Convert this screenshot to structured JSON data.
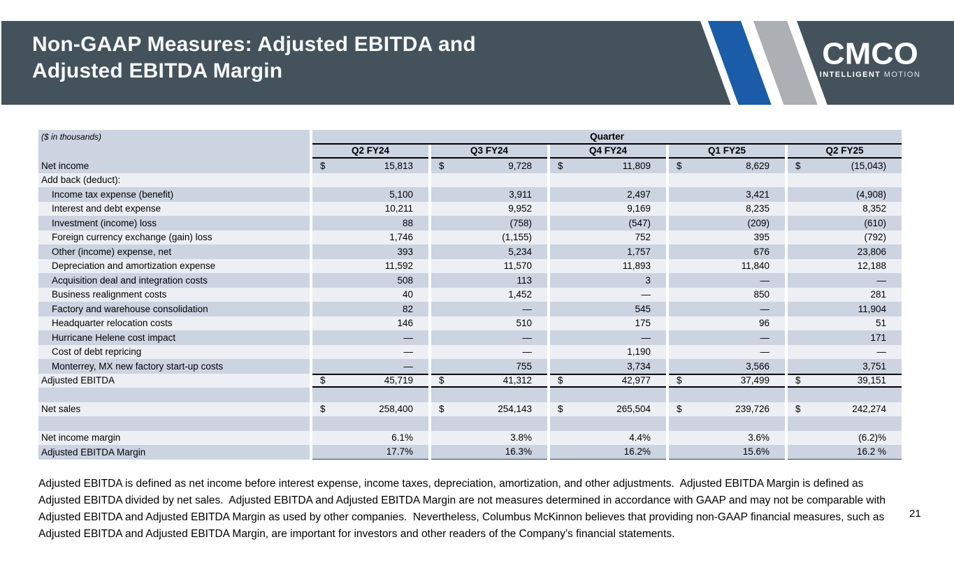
{
  "slide": {
    "title_line1": "Non-GAAP Measures: Adjusted EBITDA and",
    "title_line2": "Adjusted EBITDA Margin",
    "page_number": "21",
    "footnote": "Adjusted EBITDA is defined as net income before interest expense, income taxes, depreciation, amortization, and other adjustments.  Adjusted EBITDA Margin is defined as Adjusted EBITDA divided by net sales.  Adjusted EBITDA and Adjusted EBITDA Margin are not measures determined in accordance with GAAP and may not be comparable with Adjusted EBITDA and Adjusted EBITDA Margin as used by other companies.  Nevertheless, Columbus McKinnon believes that providing non-GAAP financial measures, such as Adjusted EBITDA and Adjusted EBITDA Margin, are important for investors and other readers of the Company’s financial statements."
  },
  "logo": {
    "wordmark": "CMCO",
    "tagline_bold": "INTELLIGENT",
    "tagline_light": "MOTION"
  },
  "colors": {
    "band": "#44525C",
    "stripe_blue": "#1A5CA8",
    "stripe_gray": "#ACB0B4",
    "row_dark": "#CCD3E1",
    "row_light": "#EDEFF4"
  },
  "table": {
    "units_label": "($ in thousands)",
    "group_header": "Quarter",
    "columns": [
      "Q2 FY24",
      "Q3 FY24",
      "Q4 FY24",
      "Q1 FY25",
      "Q2 FY25"
    ],
    "rows": [
      {
        "label": "Net income",
        "indent": false,
        "dollar": true,
        "spacer": false,
        "total": false,
        "last": false,
        "values": [
          "15,813",
          "9,728",
          "11,809",
          "8,629",
          "(15,043)"
        ]
      },
      {
        "label": "Add back (deduct):",
        "indent": false,
        "dollar": false,
        "spacer": false,
        "total": false,
        "last": false,
        "values": [
          "",
          "",
          "",
          "",
          ""
        ]
      },
      {
        "label": "Income tax expense (benefit)",
        "indent": true,
        "dollar": false,
        "spacer": false,
        "total": false,
        "last": false,
        "values": [
          "5,100",
          "3,911",
          "2,497",
          "3,421",
          "(4,908)"
        ]
      },
      {
        "label": "Interest and debt expense",
        "indent": true,
        "dollar": false,
        "spacer": false,
        "total": false,
        "last": false,
        "values": [
          "10,211",
          "9,952",
          "9,169",
          "8,235",
          "8,352"
        ]
      },
      {
        "label": "Investment (income) loss",
        "indent": true,
        "dollar": false,
        "spacer": false,
        "total": false,
        "last": false,
        "values": [
          "88",
          "(758)",
          "(547)",
          "(209)",
          "(610)"
        ]
      },
      {
        "label": "Foreign currency exchange (gain) loss",
        "indent": true,
        "dollar": false,
        "spacer": false,
        "total": false,
        "last": false,
        "values": [
          "1,746",
          "(1,155)",
          "752",
          "395",
          "(792)"
        ]
      },
      {
        "label": "Other (income) expense, net",
        "indent": true,
        "dollar": false,
        "spacer": false,
        "total": false,
        "last": false,
        "values": [
          "393",
          "5,234",
          "1,757",
          "676",
          "23,806"
        ]
      },
      {
        "label": "Depreciation and amortization expense",
        "indent": true,
        "dollar": false,
        "spacer": false,
        "total": false,
        "last": false,
        "values": [
          "11,592",
          "11,570",
          "11,893",
          "11,840",
          "12,188"
        ]
      },
      {
        "label": "Acquisition deal and integration costs",
        "indent": true,
        "dollar": false,
        "spacer": false,
        "total": false,
        "last": false,
        "values": [
          "508",
          "113",
          "3",
          "—",
          "—"
        ]
      },
      {
        "label": "Business realignment costs",
        "indent": true,
        "dollar": false,
        "spacer": false,
        "total": false,
        "last": false,
        "values": [
          "40",
          "1,452",
          "—",
          "850",
          "281"
        ]
      },
      {
        "label": "Factory and warehouse consolidation",
        "indent": true,
        "dollar": false,
        "spacer": false,
        "total": false,
        "last": false,
        "values": [
          "82",
          "—",
          "545",
          "—",
          "11,904"
        ]
      },
      {
        "label": "Headquarter relocation costs",
        "indent": true,
        "dollar": false,
        "spacer": false,
        "total": false,
        "last": false,
        "values": [
          "146",
          "510",
          "175",
          "96",
          "51"
        ]
      },
      {
        "label": "Hurricane Helene cost impact",
        "indent": true,
        "dollar": false,
        "spacer": false,
        "total": false,
        "last": false,
        "values": [
          "—",
          "—",
          "—",
          "—",
          "171"
        ]
      },
      {
        "label": "Cost of debt repricing",
        "indent": true,
        "dollar": false,
        "spacer": false,
        "total": false,
        "last": false,
        "values": [
          "—",
          "—",
          "1,190",
          "—",
          "—"
        ]
      },
      {
        "label": "Monterrey, MX new factory start-up costs",
        "indent": true,
        "dollar": false,
        "spacer": false,
        "total": false,
        "last": false,
        "values": [
          "—",
          "755",
          "3,734",
          "3,566",
          "3,751"
        ]
      },
      {
        "label": "Adjusted EBITDA",
        "indent": false,
        "dollar": true,
        "spacer": false,
        "total": true,
        "last": false,
        "values": [
          "45,719",
          "41,312",
          "42,977",
          "37,499",
          "39,151"
        ]
      },
      {
        "label": "",
        "indent": false,
        "dollar": false,
        "spacer": true,
        "total": false,
        "last": false,
        "values": [
          "",
          "",
          "",
          "",
          ""
        ]
      },
      {
        "label": "Net sales",
        "indent": false,
        "dollar": true,
        "spacer": false,
        "total": false,
        "last": false,
        "values": [
          "258,400",
          "254,143",
          "265,504",
          "239,726",
          "242,274"
        ]
      },
      {
        "label": "",
        "indent": false,
        "dollar": false,
        "spacer": true,
        "total": false,
        "last": false,
        "values": [
          "",
          "",
          "",
          "",
          ""
        ]
      },
      {
        "label": "Net income margin",
        "indent": false,
        "dollar": false,
        "spacer": false,
        "total": false,
        "last": false,
        "values": [
          "6.1%",
          "3.8%",
          "4.4%",
          "3.6%",
          "(6.2)%"
        ]
      },
      {
        "label": "Adjusted EBITDA Margin",
        "indent": false,
        "dollar": false,
        "spacer": false,
        "total": false,
        "last": true,
        "values": [
          "17.7%",
          "16.3%",
          "16.2%",
          "15.6%",
          "16.2 %"
        ]
      }
    ]
  }
}
